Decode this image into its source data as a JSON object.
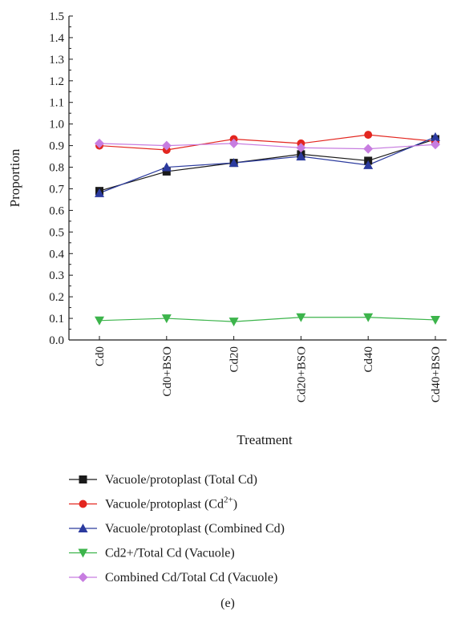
{
  "chart_data": {
    "type": "line",
    "xlabel": "Treatment",
    "ylabel": "Proportion",
    "ylim": [
      0.0,
      1.5
    ],
    "y_ticks": [
      "0.0",
      "0.1",
      "0.2",
      "0.3",
      "0.4",
      "0.5",
      "0.6",
      "0.7",
      "0.8",
      "0.9",
      "1.0",
      "1.1",
      "1.2",
      "1.3",
      "1.4",
      "1.5"
    ],
    "categories": [
      "Cd0",
      "Cd0+BSO",
      "Cd20",
      "Cd20+BSO",
      "Cd40",
      "Cd40+BSO"
    ],
    "grid": false,
    "legend_position": "bottom",
    "caption": "(e)",
    "series": [
      {
        "name": "Vacuole/protoplast (Total Cd)",
        "name_base": "Vacuole/protoplast (Total Cd)",
        "marker": "square",
        "color": "#1a1a1a",
        "line_color": "#1a1a1a",
        "values": [
          0.69,
          0.78,
          0.82,
          0.86,
          0.83,
          0.93
        ]
      },
      {
        "name": "Vacuole/protoplast (Cd2+)",
        "name_base": "Vacuole/protoplast (Cd",
        "name_sup": "2+",
        "name_end": ")",
        "marker": "circle",
        "color": "#e3261f",
        "line_color": "#e3261f",
        "values": [
          0.9,
          0.88,
          0.93,
          0.91,
          0.95,
          0.92
        ]
      },
      {
        "name": "Vacuole/protoplast (Combined Cd)",
        "name_base": "Vacuole/protoplast (Combined Cd)",
        "marker": "triangle-up",
        "color": "#2b3a9e",
        "line_color": "#2b3a9e",
        "values": [
          0.68,
          0.8,
          0.82,
          0.85,
          0.81,
          0.94
        ]
      },
      {
        "name": "Cd2+/Total Cd (Vacuole)",
        "name_base": "Cd2+/Total Cd (Vacuole)",
        "marker": "triangle-down",
        "color": "#3cb44b",
        "line_color": "#3cb44b",
        "values": [
          0.09,
          0.1,
          0.085,
          0.105,
          0.105,
          0.093
        ]
      },
      {
        "name": "Combined Cd/Total Cd (Vacuole)",
        "name_base": "Combined Cd/Total Cd (Vacuole)",
        "marker": "diamond",
        "color": "#c77de0",
        "line_color": "#c77de0",
        "values": [
          0.91,
          0.9,
          0.91,
          0.89,
          0.885,
          0.905
        ]
      }
    ]
  }
}
